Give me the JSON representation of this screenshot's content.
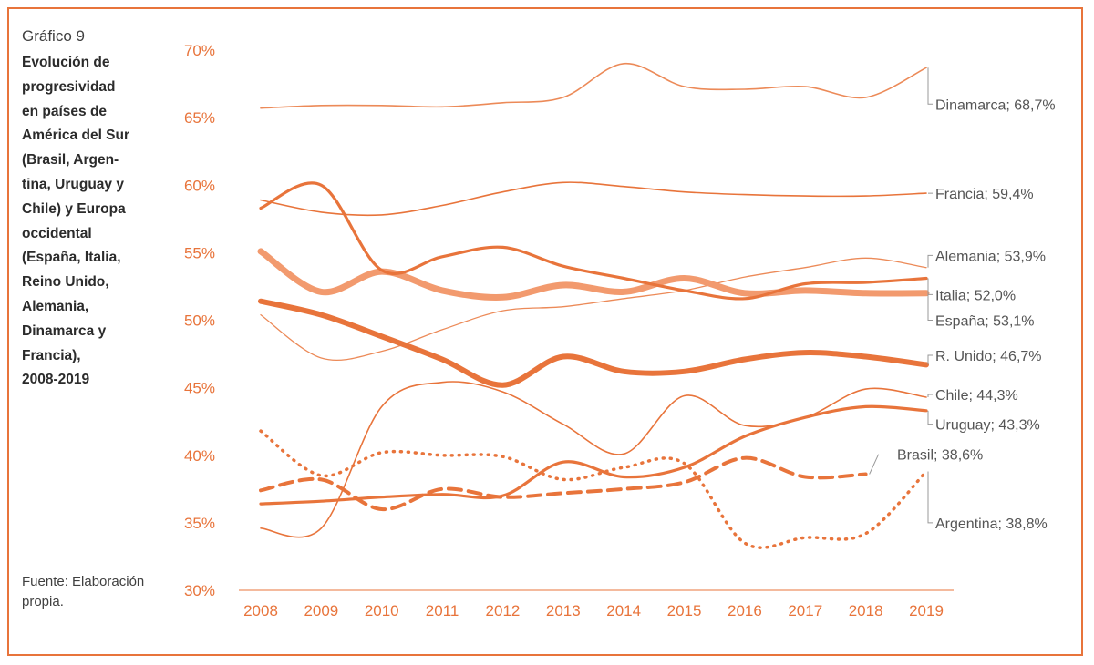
{
  "figure": {
    "number": "Gráfico 9",
    "title": "Evolución de\nprogresividad\nen países de\nAmérica del Sur\n(Brasil, Argen-\ntina, Uruguay y\nChile) y Europa\noccidental\n(España, Italia,\nReino Unido,\nAlemania,\nDinamarca y\nFrancia),\n2008-2019",
    "source": "Fuente: Elaboración propia."
  },
  "colors": {
    "accent": "#e8743b",
    "tick_text": "#e8743b",
    "label_text": "#555555",
    "axis_line": "#e8743b"
  },
  "chart_data": {
    "type": "line",
    "x": [
      2008,
      2009,
      2010,
      2011,
      2012,
      2013,
      2014,
      2015,
      2016,
      2017,
      2018,
      2019
    ],
    "x_tick_labels": [
      "2008",
      "2009",
      "2010",
      "2011",
      "2012",
      "2013",
      "2014",
      "2015",
      "2016",
      "2017",
      "2018",
      "2019"
    ],
    "ylim": [
      30,
      70
    ],
    "y_ticks": [
      30,
      35,
      40,
      45,
      50,
      55,
      60,
      65,
      70
    ],
    "y_tick_labels": [
      "30%",
      "35%",
      "40%",
      "45%",
      "50%",
      "55%",
      "60%",
      "65%",
      "70%"
    ],
    "grid": false,
    "series": [
      {
        "name": "Dinamarca",
        "label": "Dinamarca; 68,7%",
        "label_y": 66.0,
        "values": [
          65.7,
          65.9,
          65.9,
          65.8,
          66.1,
          66.5,
          69.0,
          67.3,
          67.1,
          67.3,
          66.5,
          68.7
        ],
        "width": 1.6,
        "dash": "",
        "color": "#ec8a58"
      },
      {
        "name": "Francia",
        "label": "Francia; 59,4%",
        "label_y": 59.4,
        "values": [
          58.9,
          58.0,
          57.8,
          58.5,
          59.5,
          60.2,
          59.9,
          59.5,
          59.3,
          59.2,
          59.2,
          59.4
        ],
        "width": 1.6,
        "dash": "",
        "color": "#e8743b"
      },
      {
        "name": "Alemania",
        "label": "Alemania; 53,9%",
        "label_y": 54.8,
        "values": [
          50.4,
          47.2,
          47.7,
          49.3,
          50.7,
          51.0,
          51.6,
          52.2,
          53.2,
          53.9,
          54.6,
          53.9
        ],
        "width": 1.3,
        "dash": "",
        "color": "#ec8a58"
      },
      {
        "name": "Italia",
        "label": "Italia; 52,0%",
        "label_y": 51.9,
        "values": [
          55.1,
          52.1,
          53.6,
          52.2,
          51.7,
          52.6,
          52.1,
          53.1,
          52.0,
          52.2,
          52.0,
          52.0
        ],
        "width": 7,
        "dash": "",
        "color": "#f29a6e"
      },
      {
        "name": "España",
        "label": "España; 53,1%",
        "label_y": 50.0,
        "values": [
          58.3,
          60.0,
          53.7,
          54.7,
          55.4,
          54.0,
          53.1,
          52.2,
          51.6,
          52.7,
          52.8,
          53.1
        ],
        "width": 3.2,
        "dash": "",
        "color": "#e8743b"
      },
      {
        "name": "R. Unido",
        "label": "R. Unido; 46,7%",
        "label_y": 47.4,
        "values": [
          51.4,
          50.4,
          48.8,
          47.1,
          45.2,
          47.3,
          46.2,
          46.2,
          47.1,
          47.6,
          47.3,
          46.7
        ],
        "width": 6,
        "dash": "",
        "color": "#e8743b"
      },
      {
        "name": "Chile",
        "label": "Chile; 44,3%",
        "label_y": 44.5,
        "values": [
          34.6,
          34.6,
          43.6,
          45.4,
          44.7,
          42.3,
          40.1,
          44.4,
          42.2,
          42.8,
          44.9,
          44.3
        ],
        "width": 1.6,
        "dash": "",
        "color": "#e8743b"
      },
      {
        "name": "Uruguay",
        "label": "Uruguay; 43,3%",
        "label_y": 42.3,
        "values": [
          36.4,
          36.6,
          36.9,
          37.1,
          37.0,
          39.5,
          38.4,
          39.1,
          41.4,
          42.8,
          43.6,
          43.3
        ],
        "width": 3.2,
        "dash": "",
        "color": "#e8743b"
      },
      {
        "name": "Brasil",
        "label": "Brasil; 38,6%",
        "label_y": 39.8,
        "values": [
          37.4,
          38.2,
          36.0,
          37.5,
          36.9,
          37.2,
          37.5,
          38.0,
          39.8,
          38.4,
          38.6,
          null
        ],
        "width": 4,
        "dash": "14,8",
        "color": "#e8743b"
      },
      {
        "name": "Argentina",
        "label": "Argentina; 38,8%",
        "label_y": 35.0,
        "values": [
          41.8,
          38.5,
          40.2,
          40.0,
          39.9,
          38.2,
          39.1,
          39.4,
          33.5,
          33.9,
          34.2,
          38.8
        ],
        "width": 3.5,
        "dash": "1,7",
        "color": "#e8743b"
      }
    ]
  }
}
